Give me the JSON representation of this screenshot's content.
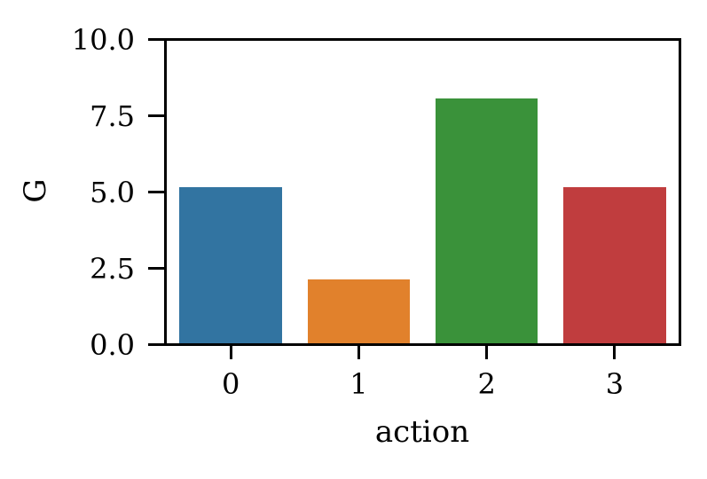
{
  "figure": {
    "background_color": "#ffffff",
    "axis_color": "#000000"
  },
  "chart_data": {
    "type": "bar",
    "title": "",
    "xlabel": "action",
    "ylabel": "G",
    "categories": [
      "0",
      "1",
      "2",
      "3"
    ],
    "values": [
      5.15,
      2.1,
      8.1,
      5.15
    ],
    "bar_colors": [
      "#3274a1",
      "#e1812c",
      "#3a923a",
      "#c03d3e"
    ],
    "ylim": [
      0,
      10
    ],
    "yticks": [
      0,
      2.5,
      5,
      7.5,
      10
    ],
    "ytick_labels": [
      "0.0",
      "2.5",
      "5.0",
      "7.5",
      "10.0"
    ],
    "bar_width_fraction": 0.8,
    "grid": false,
    "legend": null
  }
}
